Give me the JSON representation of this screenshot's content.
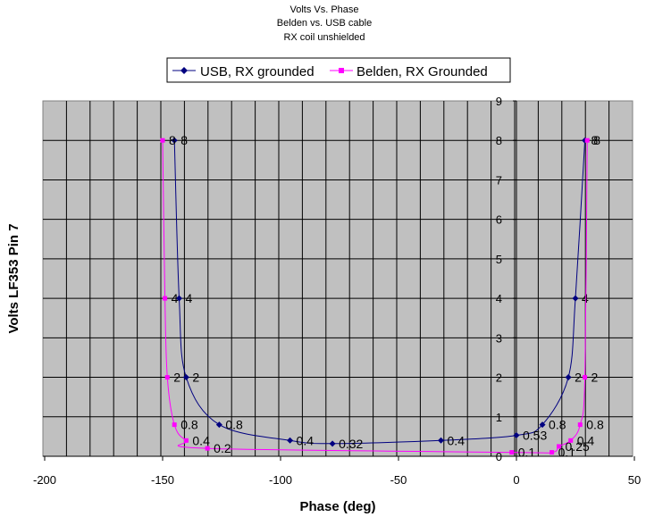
{
  "chart_data": {
    "type": "scatter",
    "title": [
      "Volts Vs. Phase",
      "Belden vs. USB cable",
      "RX coil unshielded"
    ],
    "xlabel": "Phase (deg)",
    "ylabel": "Volts LF353 Pin 7",
    "xlim": [
      -200,
      50
    ],
    "ylim": [
      0,
      9
    ],
    "xticks": [
      -200,
      -150,
      -100,
      -50,
      0,
      50
    ],
    "yticks": [
      0,
      1,
      2,
      3,
      4,
      5,
      6,
      7,
      8,
      9
    ],
    "xtick_labels": [
      "-200",
      "-150",
      "-100",
      "-50",
      "0",
      "50"
    ],
    "ytick_labels": [
      "0",
      "1",
      "2",
      "3",
      "4",
      "5",
      "6",
      "7",
      "8",
      "9"
    ],
    "grid": true,
    "legend_position": "top",
    "series": [
      {
        "name": "USB, RX grounded",
        "color": "#000080",
        "marker": "diamond",
        "x": [
          -145,
          -143,
          -140,
          -126,
          -96,
          -78,
          -32,
          0,
          11,
          22,
          25,
          29
        ],
        "y": [
          8,
          4,
          2,
          0.8,
          0.4,
          0.32,
          0.4,
          0.53,
          0.8,
          2,
          4,
          8
        ],
        "labels": [
          "8",
          "4",
          "2",
          "0.8",
          "0.4",
          "0.32",
          "0.4",
          "0.53",
          "0.8",
          "2",
          "4",
          "8"
        ]
      },
      {
        "name": "Belden, RX Grounded",
        "color": "#ff00ff",
        "marker": "square",
        "x": [
          -150,
          -149,
          -148,
          -145,
          -140,
          -131,
          -2,
          15,
          18,
          23,
          27,
          29,
          30
        ],
        "y": [
          8,
          4,
          2,
          0.8,
          0.4,
          0.2,
          0.1,
          0.1,
          0.25,
          0.4,
          0.8,
          2,
          8
        ],
        "labels": [
          "8",
          "4",
          "2",
          "0.8",
          "0.4",
          "0.2",
          "0.1",
          "0.1",
          "0.25",
          "0.4",
          "0.8",
          "2",
          "8"
        ]
      }
    ]
  }
}
